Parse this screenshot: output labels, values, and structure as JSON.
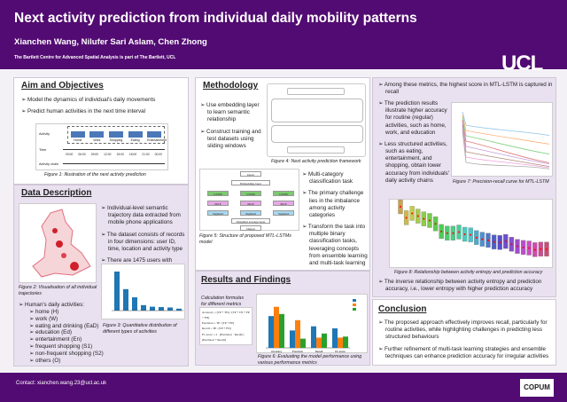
{
  "header": {
    "title": "Next activity prediction from individual daily mobility patterns",
    "authors": "Xianchen Wang, Nilufer Sari Aslam, Chen Zhong",
    "affiliation": "The Bartlett Centre for Advanced Spatial Analysis is part of The Bartlett, UCL",
    "logo": "UCL"
  },
  "aim": {
    "title": "Aim and Objectives",
    "bullets": [
      "Model the dynamics of individual's daily movements",
      "Predict human activities in the next time interval"
    ],
    "figure": {
      "row_labels": [
        "Activity",
        "Time",
        "Activity chain"
      ],
      "activities": [
        "Home",
        "Work",
        "Shopping",
        "Eating",
        "Entertainment"
      ],
      "times": [
        "03:00",
        "06:00",
        "09:00",
        "12:00",
        "15:00",
        "18:00",
        "21:00",
        "00:00"
      ],
      "caption": "Figure 1: Illustration of the next activity prediction"
    }
  },
  "data": {
    "title": "Data Description",
    "bullets": [
      "Individual-level semantic trajectory data extracted from mobile phone applications",
      "The dataset consists of records in four dimensions: user ID, time, location and activity type",
      "There are 1475 users with 104,069 trajectory records within 30 days (November 2021)"
    ],
    "fig2_caption": "Figure 2: Visualisation of all individual trajectories",
    "activities_title": "Human's daily activities:",
    "activities": [
      "home (H)",
      "work (W)",
      "eating and drinking (EaD)",
      "education (Ed)",
      "entertainment (En)",
      "frequent shopping (S1)",
      "non-frequent shopping (S2)",
      "others (O)"
    ],
    "fig3_caption": "Figure 3: Quantitative distribution of different types of activities"
  },
  "method": {
    "title": "Methodology",
    "bullets": [
      "Use embedding layer to learn semantic relationship",
      "Construct training and test datasets using sliding windows"
    ],
    "fig4_caption": "Figure 4: Next activity prediction framework",
    "fig5_nodes": [
      "Input",
      "Embedding layer",
      "LSTM",
      "MLP",
      "Sigmoid",
      "Weighted average layer",
      "Output"
    ],
    "fig5_caption": "Figure 5: Structure of proposed MTL-LSTMs model",
    "bullets2": [
      "Multi-category classification task",
      "The primary challenge lies in the imbalance among activity categories",
      "Transform the task into multiple binary classification tasks, leveraging concepts from ensemble learning and multi-task learning"
    ]
  },
  "results": {
    "title": "Results and Findings",
    "formula_caption": "Calculation formulas for different metrics",
    "formulas": [
      "Accuracy = (TP + TN) / (TP + TN + FP + FN)",
      "Precision = TP / (TP + FP)",
      "Recall = TP / (TP + FN)",
      "F1-score = 2 · (Precision · Recall) / (Precision + Recall)"
    ],
    "fig6_caption": "Figure 6: Evaluating the model performance using various performance metrics"
  },
  "chart_data": {
    "type": "bar",
    "categories": [
      "Accuracy",
      "Precision",
      "Recall",
      "F1-score"
    ],
    "series": [
      {
        "values": [
          0.81,
          0.67,
          0.71,
          0.69
        ],
        "color": "#1f77b4"
      },
      {
        "values": [
          0.9,
          0.77,
          0.6,
          0.6
        ],
        "color": "#ff7f0e"
      },
      {
        "values": [
          0.83,
          0.59,
          0.64,
          0.61
        ],
        "color": "#2ca02c"
      }
    ]
  },
  "findings": {
    "bullets_top": [
      "Among these metrics, the highest score in MTL-LSTM is captured in recall"
    ],
    "bullets": [
      "The prediction results illustrate higher accuracy for routine (regular) activities, such as home, work, and education",
      "Less structured activities, such as eating, entertainment, and shopping, obtain lower accuracy from individuals' daily activity chains"
    ],
    "fig7_caption": "Figure 7: Precision-recall curve for MTL-LSTM",
    "fig8_caption": "Figure 8: Relationship between activity entropy and prediction accuracy",
    "bullet_bottom": "The inverse relationship between activity entropy and prediction accuracy, i.e., lower entropy with higher prediction accuracy"
  },
  "conclusion": {
    "title": "Conclusion",
    "bullets": [
      "The proposed approach effectively improves recall, particularly for routine activities, while highlighting challenges in predicting less structured behaviours",
      "Further refinement of multi-task learning strategies and ensemble techniques can enhance prediction accuracy for irregular activities"
    ]
  },
  "footer": {
    "contact": "Contact: xianchen.wang.23@ucl.ac.uk",
    "logo": "COPUM"
  }
}
